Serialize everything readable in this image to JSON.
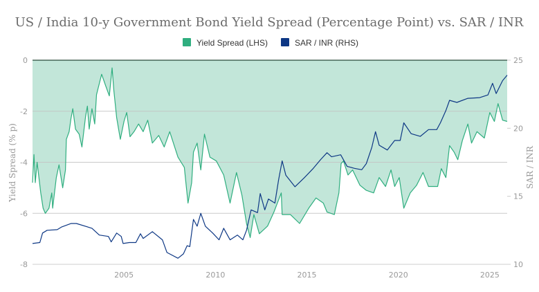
{
  "chart_data": {
    "type": "line",
    "title": "US / India 10-y Government Bond Yield Spread (Percentage Point) vs. SAR / INR",
    "legend": {
      "placement": "top-center"
    },
    "grid": true,
    "colors": {
      "spread_line": "#2fae7f",
      "spread_fill": "#c2e6d9",
      "sar_inr": "#0d3784",
      "zero_line": "#2a4a3a",
      "grid": "#c4c4c4"
    },
    "x_axis": {
      "min": 2000.0,
      "max": 2025.95,
      "ticks": [
        2005,
        2010,
        2015,
        2020,
        2025
      ],
      "tick_labels": [
        "2005",
        "2010",
        "2015",
        "2020",
        "2025"
      ]
    },
    "y_left": {
      "label": "Yield Spread (% p)",
      "min": -8,
      "max": 0,
      "ticks": [
        0,
        -2,
        -4,
        -6,
        -8
      ],
      "tick_labels": [
        "0",
        "-2",
        "-4",
        "-6",
        "-8"
      ]
    },
    "y_right": {
      "label": "SAR / INR",
      "min": 10,
      "max": 25,
      "ticks": [
        25,
        20,
        15,
        10
      ],
      "tick_labels": [
        "25",
        "20",
        "15",
        "10"
      ]
    },
    "series": [
      {
        "name": "Yield Spread (LHS)",
        "axis": "left",
        "fill_to": 0,
        "x": [
          2000.0,
          2000.08,
          2000.15,
          2000.25,
          2000.45,
          2000.58,
          2000.7,
          2000.9,
          2001.05,
          2001.1,
          2001.3,
          2001.45,
          2001.65,
          2001.8,
          2001.85,
          2002.0,
          2002.1,
          2002.2,
          2002.35,
          2002.55,
          2002.7,
          2002.9,
          2003.0,
          2003.1,
          2003.25,
          2003.4,
          2003.5,
          2003.78,
          2004.0,
          2004.2,
          2004.35,
          2004.45,
          2004.6,
          2004.8,
          2005.0,
          2005.15,
          2005.33,
          2005.55,
          2005.8,
          2006.05,
          2006.3,
          2006.55,
          2006.9,
          2007.2,
          2007.5,
          2007.95,
          2008.3,
          2008.5,
          2008.7,
          2008.8,
          2009.0,
          2009.2,
          2009.4,
          2009.7,
          2010.05,
          2010.45,
          2010.8,
          2011.15,
          2011.45,
          2011.7,
          2011.9,
          2012.1,
          2012.4,
          2012.85,
          2013.2,
          2013.6,
          2013.65,
          2014.1,
          2014.6,
          2015.1,
          2015.5,
          2015.9,
          2016.1,
          2016.5,
          2016.75,
          2016.87,
          2017.0,
          2017.25,
          2017.5,
          2017.9,
          2018.25,
          2018.65,
          2018.95,
          2019.3,
          2019.6,
          2019.8,
          2020.05,
          2020.3,
          2020.65,
          2021.0,
          2021.35,
          2021.65,
          2022.15,
          2022.35,
          2022.6,
          2022.8,
          2023.05,
          2023.25,
          2023.5,
          2023.8,
          2024.0,
          2024.3,
          2024.7,
          2025.0,
          2025.25,
          2025.45,
          2025.7,
          2025.95
        ],
        "values": [
          -4.8,
          -3.7,
          -4.8,
          -4.0,
          -5.2,
          -5.8,
          -6.0,
          -5.8,
          -5.2,
          -5.8,
          -4.6,
          -4.1,
          -5.0,
          -4.3,
          -3.1,
          -2.8,
          -2.3,
          -1.9,
          -2.7,
          -2.9,
          -3.4,
          -2.2,
          -1.8,
          -2.7,
          -1.9,
          -2.5,
          -1.35,
          -0.55,
          -1.0,
          -1.4,
          -0.3,
          -1.2,
          -2.25,
          -3.1,
          -2.4,
          -2.05,
          -3.0,
          -2.8,
          -2.5,
          -2.8,
          -2.35,
          -3.25,
          -2.95,
          -3.4,
          -2.8,
          -3.8,
          -4.2,
          -5.6,
          -4.8,
          -3.6,
          -3.25,
          -4.3,
          -2.9,
          -3.8,
          -3.95,
          -4.5,
          -5.6,
          -4.4,
          -5.3,
          -6.4,
          -6.95,
          -6.05,
          -6.8,
          -6.5,
          -5.95,
          -5.2,
          -6.05,
          -6.05,
          -6.4,
          -5.8,
          -5.4,
          -5.6,
          -5.95,
          -6.05,
          -5.2,
          -4.05,
          -3.95,
          -4.5,
          -4.3,
          -4.9,
          -5.1,
          -5.2,
          -4.6,
          -4.95,
          -4.3,
          -4.95,
          -4.6,
          -5.8,
          -5.2,
          -4.9,
          -4.4,
          -4.95,
          -4.95,
          -4.25,
          -4.6,
          -3.35,
          -3.6,
          -3.9,
          -3.15,
          -2.5,
          -3.25,
          -2.8,
          -3.05,
          -2.05,
          -2.4,
          -1.7,
          -2.35,
          -2.4
        ]
      },
      {
        "name": "SAR / INR (RHS)",
        "axis": "right",
        "x": [
          2000.0,
          2000.4,
          2000.55,
          2000.8,
          2001.35,
          2001.6,
          2002.1,
          2002.4,
          2003.25,
          2003.65,
          2004.15,
          2004.3,
          2004.6,
          2004.85,
          2004.95,
          2005.3,
          2005.65,
          2005.9,
          2006.05,
          2006.55,
          2007.1,
          2007.35,
          2007.95,
          2008.25,
          2008.45,
          2008.6,
          2008.8,
          2009.0,
          2009.2,
          2009.45,
          2009.85,
          2010.2,
          2010.45,
          2010.8,
          2011.2,
          2011.5,
          2011.7,
          2011.95,
          2012.3,
          2012.45,
          2012.7,
          2012.9,
          2013.25,
          2013.45,
          2013.65,
          2013.85,
          2014.35,
          2014.85,
          2015.35,
          2015.75,
          2016.1,
          2016.35,
          2016.85,
          2017.2,
          2017.6,
          2018.0,
          2018.25,
          2018.55,
          2018.75,
          2018.95,
          2019.4,
          2019.8,
          2020.1,
          2020.3,
          2020.7,
          2021.2,
          2021.65,
          2022.1,
          2022.3,
          2022.6,
          2022.8,
          2023.2,
          2023.8,
          2024.45,
          2024.9,
          2025.15,
          2025.35,
          2025.7,
          2025.95
        ],
        "values": [
          11.53,
          11.6,
          12.3,
          12.5,
          12.55,
          12.75,
          13.0,
          13.0,
          12.65,
          12.15,
          12.05,
          11.65,
          12.3,
          12.05,
          11.53,
          11.6,
          11.6,
          12.25,
          11.9,
          12.4,
          11.8,
          10.87,
          10.45,
          10.77,
          11.37,
          11.3,
          13.3,
          12.8,
          13.75,
          12.8,
          12.3,
          11.8,
          12.65,
          11.8,
          12.15,
          11.8,
          12.5,
          14.0,
          13.8,
          15.2,
          14.0,
          14.8,
          14.5,
          16.2,
          17.6,
          16.55,
          15.7,
          16.35,
          17.05,
          17.7,
          18.2,
          17.9,
          18.05,
          17.2,
          17.05,
          16.95,
          17.4,
          18.6,
          19.75,
          18.75,
          18.4,
          19.1,
          19.1,
          20.4,
          19.6,
          19.4,
          19.9,
          19.9,
          20.4,
          21.3,
          22.05,
          21.9,
          22.2,
          22.25,
          22.45,
          23.3,
          22.55,
          23.5,
          23.9
        ]
      }
    ]
  }
}
